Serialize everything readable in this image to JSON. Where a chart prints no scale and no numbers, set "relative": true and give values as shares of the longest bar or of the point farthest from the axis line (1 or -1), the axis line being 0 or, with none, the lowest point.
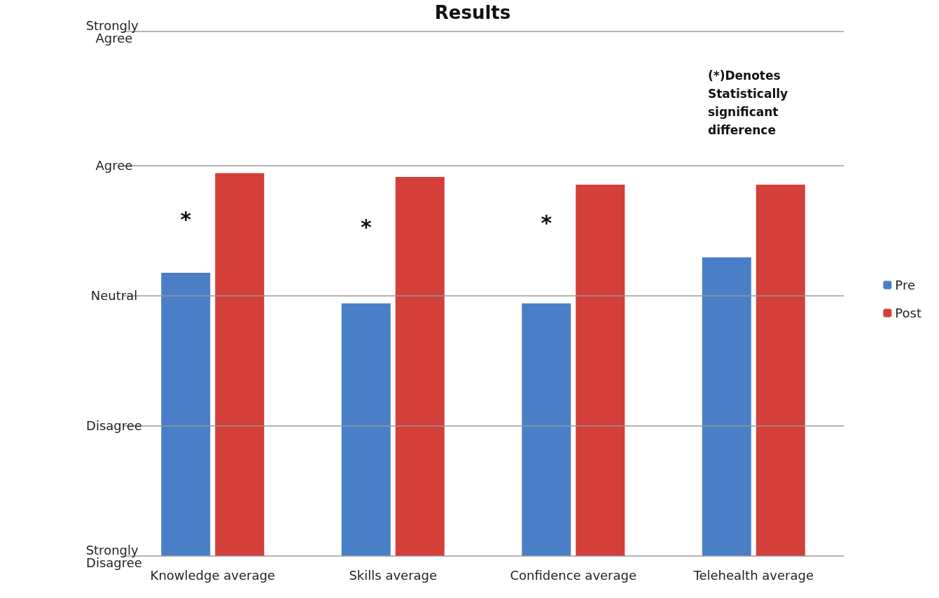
{
  "chart_data": {
    "type": "bar",
    "title": "Results",
    "relative": true,
    "categories": [
      "Knowledge average",
      "Skills average",
      "Confidence average",
      "Telehealth average"
    ],
    "series": [
      {
        "name": "Pre",
        "color": "#4a7fc8",
        "values": [
          0.74,
          0.66,
          0.66,
          0.78
        ]
      },
      {
        "name": "Post",
        "color": "#d43f3a",
        "values": [
          1,
          0.99,
          0.97,
          0.97
        ]
      }
    ],
    "ref_lines": [
      {
        "axis": "y",
        "value": 0,
        "label": "Strongly Disagree",
        "color": "#999999"
      },
      {
        "axis": "y",
        "value": 0.34,
        "label": "Disagree",
        "color": "#999999"
      },
      {
        "axis": "y",
        "value": 0.68,
        "label": "Neutral",
        "color": "#999999"
      },
      {
        "axis": "y",
        "value": 1.02,
        "label": "Agree",
        "color": "#999999"
      },
      {
        "axis": "y",
        "value": 1.37,
        "label": "Strongly Agree",
        "color": "#999999"
      }
    ],
    "legend": "right",
    "annotations": [
      "(*)Denotes Statistically significant difference",
      {
        "text": "*",
        "x": "Knowledge average",
        "y": 0.88
      },
      {
        "text": "*",
        "x": "Skills average",
        "y": 0.86
      },
      {
        "text": "*",
        "x": "Confidence average",
        "y": 0.87
      }
    ]
  }
}
